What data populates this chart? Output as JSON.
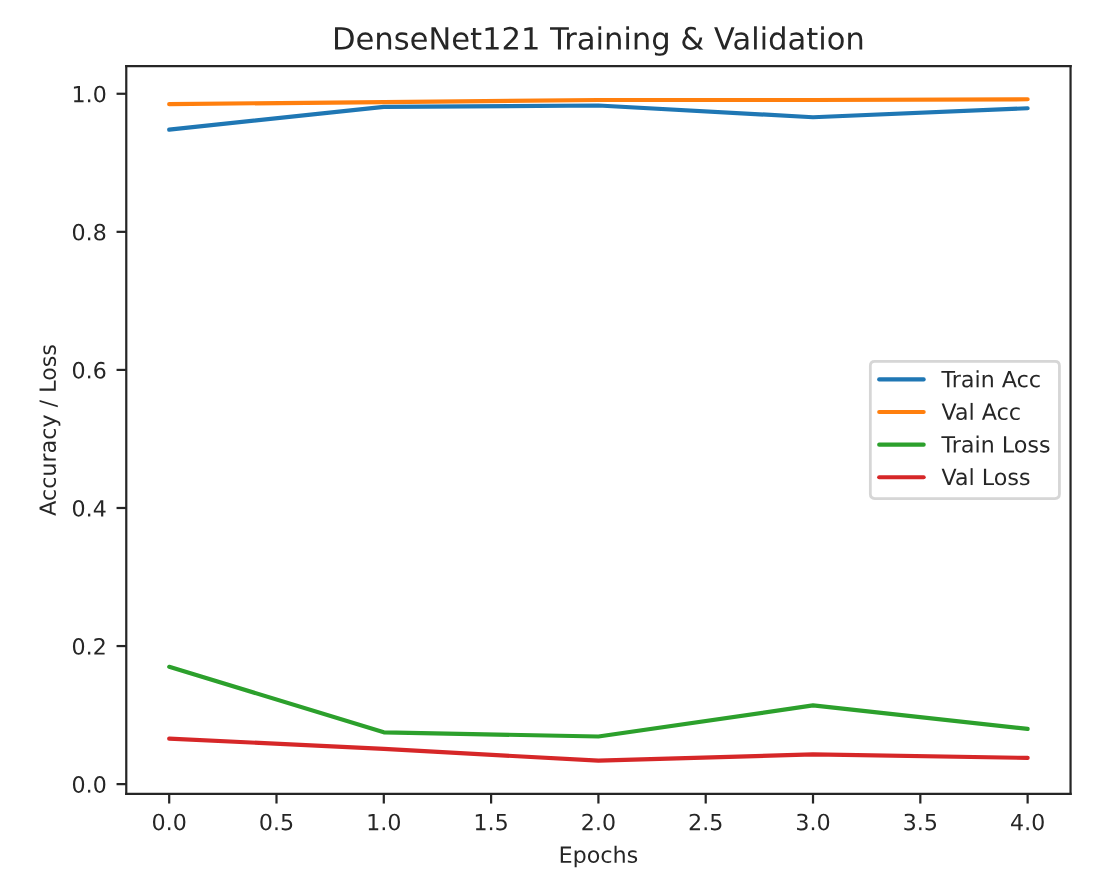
{
  "chart_data": {
    "type": "line",
    "title": "DenseNet121 Training & Validation",
    "xlabel": "Epochs",
    "ylabel": "Accuracy / Loss",
    "x": [
      0,
      1,
      2,
      3,
      4
    ],
    "series": [
      {
        "name": "Train Acc",
        "color": "#1f77b4",
        "values": [
          0.948,
          0.981,
          0.983,
          0.966,
          0.979
        ]
      },
      {
        "name": "Val Acc",
        "color": "#ff7f0e",
        "values": [
          0.985,
          0.988,
          0.991,
          0.991,
          0.992
        ]
      },
      {
        "name": "Train Loss",
        "color": "#2ca02c",
        "values": [
          0.17,
          0.075,
          0.069,
          0.114,
          0.08
        ]
      },
      {
        "name": "Val Loss",
        "color": "#d62728",
        "values": [
          0.066,
          0.051,
          0.034,
          0.043,
          0.038
        ]
      }
    ],
    "xlim": [
      -0.2,
      4.2
    ],
    "xticks": [
      {
        "value": 0,
        "label": "0.0"
      },
      {
        "value": 0.5,
        "label": "0.5"
      },
      {
        "value": 1,
        "label": "1.0"
      },
      {
        "value": 1.5,
        "label": "1.5"
      },
      {
        "value": 2,
        "label": "2.0"
      },
      {
        "value": 2.5,
        "label": "2.5"
      },
      {
        "value": 3,
        "label": "3.0"
      },
      {
        "value": 3.5,
        "label": "3.5"
      },
      {
        "value": 4,
        "label": "4.0"
      }
    ],
    "ylim": [
      -0.014,
      1.04
    ],
    "yticks": [
      {
        "value": 0,
        "label": "0.0"
      },
      {
        "value": 0.2,
        "label": "0.2"
      },
      {
        "value": 0.4,
        "label": "0.4"
      },
      {
        "value": 0.6,
        "label": "0.6"
      },
      {
        "value": 0.8,
        "label": "0.8"
      },
      {
        "value": 1,
        "label": "1.0"
      }
    ],
    "legend": "right",
    "grid": false,
    "marker": "none",
    "line_style": "solid"
  }
}
